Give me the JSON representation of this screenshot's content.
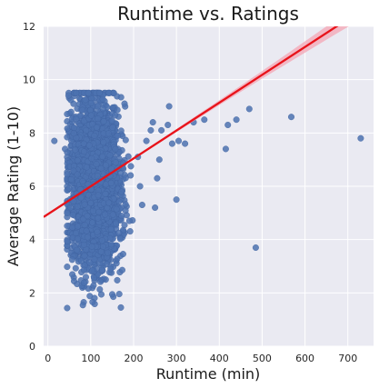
{
  "chart_data": {
    "type": "scatter",
    "title": "Runtime vs. Ratings",
    "xlabel": "Runtime (min)",
    "ylabel": "Average Rating (1-10)",
    "xlim": [
      -10,
      760
    ],
    "ylim": [
      0,
      12
    ],
    "xticks": [
      0,
      100,
      200,
      300,
      400,
      500,
      600,
      700
    ],
    "yticks": [
      0,
      2,
      4,
      6,
      8,
      10,
      12
    ],
    "grid": true,
    "colors": {
      "background": "#eaeaf2",
      "grid": "#ffffff",
      "points": "#4c72b0",
      "regression": "#e8131a",
      "confidence_band": "#f4a6b4"
    },
    "regression": {
      "x": [
        -10,
        760
      ],
      "y": [
        4.85,
        12.9
      ],
      "band_half_width_at_end": 0.35
    },
    "dense_cluster": {
      "x_range": [
        45,
        200
      ],
      "y_range": [
        1.0,
        9.5
      ],
      "x_center": 110,
      "y_center": 6.0
    },
    "outliers": [
      {
        "x": 15,
        "y": 7.7
      },
      {
        "x": 40,
        "y": 7.4
      },
      {
        "x": 210,
        "y": 7.1
      },
      {
        "x": 215,
        "y": 6.0
      },
      {
        "x": 220,
        "y": 5.3
      },
      {
        "x": 230,
        "y": 7.7
      },
      {
        "x": 240,
        "y": 8.1
      },
      {
        "x": 245,
        "y": 8.4
      },
      {
        "x": 250,
        "y": 5.2
      },
      {
        "x": 255,
        "y": 6.3
      },
      {
        "x": 260,
        "y": 7.0
      },
      {
        "x": 265,
        "y": 8.1
      },
      {
        "x": 280,
        "y": 8.3
      },
      {
        "x": 283,
        "y": 9.0
      },
      {
        "x": 290,
        "y": 7.6
      },
      {
        "x": 300,
        "y": 5.5
      },
      {
        "x": 305,
        "y": 7.7
      },
      {
        "x": 320,
        "y": 7.6
      },
      {
        "x": 340,
        "y": 8.4
      },
      {
        "x": 365,
        "y": 8.5
      },
      {
        "x": 415,
        "y": 7.4
      },
      {
        "x": 420,
        "y": 8.3
      },
      {
        "x": 440,
        "y": 8.5
      },
      {
        "x": 470,
        "y": 8.9
      },
      {
        "x": 485,
        "y": 3.7
      },
      {
        "x": 568,
        "y": 8.6
      },
      {
        "x": 730,
        "y": 7.8
      }
    ]
  }
}
